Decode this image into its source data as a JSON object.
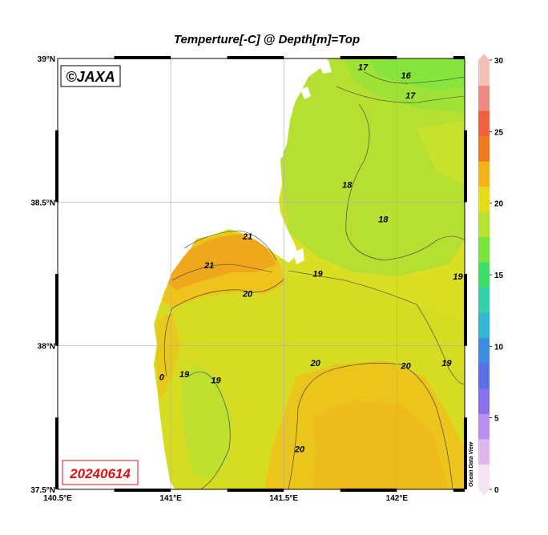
{
  "title": "Temperture[-C] @ Depth[m]=Top",
  "copyright": "©JAXA",
  "date_stamp": "20240614",
  "watermark": "Ocean Data View",
  "colors": {
    "land": "#ffffff",
    "frame": "#000000",
    "date_text": "#e01010"
  },
  "map": {
    "lon_range": [
      140.5,
      142.3
    ],
    "lat_range": [
      37.5,
      39.0
    ],
    "x_ticks": [
      {
        "value": 140.5,
        "label": "140.5°E"
      },
      {
        "value": 141.0,
        "label": "141°E"
      },
      {
        "value": 141.5,
        "label": "141.5°E"
      },
      {
        "value": 142.0,
        "label": "142°E"
      }
    ],
    "y_ticks": [
      {
        "value": 39.0,
        "label": "39°N"
      },
      {
        "value": 38.5,
        "label": "38.5°N"
      },
      {
        "value": 38.0,
        "label": "38°N"
      },
      {
        "value": 37.5,
        "label": "37.5°N"
      }
    ],
    "grid": true
  },
  "colorbar": {
    "range": [
      0,
      30
    ],
    "ticks": [
      "0",
      "5",
      "10",
      "15",
      "20",
      "25",
      "30"
    ],
    "colors": [
      "#f3e3f3",
      "#e0b8ef",
      "#b890ee",
      "#8870e8",
      "#5b6fe6",
      "#3f8ce0",
      "#33b6d6",
      "#35cfa8",
      "#3fdc68",
      "#78e440",
      "#b6e332",
      "#e5dc1a",
      "#f1b21a",
      "#f07a22",
      "#f0603c",
      "#f08a84",
      "#f3c2b6"
    ]
  },
  "chart_data": {
    "type": "heatmap",
    "variable": "Temperture[-C]",
    "depth": "Top",
    "date": "20240614",
    "contour_labels": [
      {
        "value": "17",
        "lon": 141.85,
        "lat": 38.96
      },
      {
        "value": "16",
        "lon": 142.04,
        "lat": 38.93
      },
      {
        "value": "17",
        "lon": 142.06,
        "lat": 38.86
      },
      {
        "value": "18",
        "lon": 141.78,
        "lat": 38.55
      },
      {
        "value": "18",
        "lon": 141.94,
        "lat": 38.43
      },
      {
        "value": "21",
        "lon": 141.34,
        "lat": 38.37
      },
      {
        "value": "21",
        "lon": 141.17,
        "lat": 38.27
      },
      {
        "value": "19",
        "lon": 141.65,
        "lat": 38.24
      },
      {
        "value": "19",
        "lon": 142.27,
        "lat": 38.23
      },
      {
        "value": "20",
        "lon": 141.34,
        "lat": 38.17
      },
      {
        "value": "20",
        "lon": 141.64,
        "lat": 37.93
      },
      {
        "value": "20",
        "lon": 142.04,
        "lat": 37.92
      },
      {
        "value": "19",
        "lon": 142.22,
        "lat": 37.93
      },
      {
        "value": "0",
        "lon": 140.96,
        "lat": 37.88
      },
      {
        "value": "19",
        "lon": 141.06,
        "lat": 37.89
      },
      {
        "value": "19",
        "lon": 141.2,
        "lat": 37.87
      },
      {
        "value": "20",
        "lon": 141.57,
        "lat": 37.63
      }
    ]
  }
}
